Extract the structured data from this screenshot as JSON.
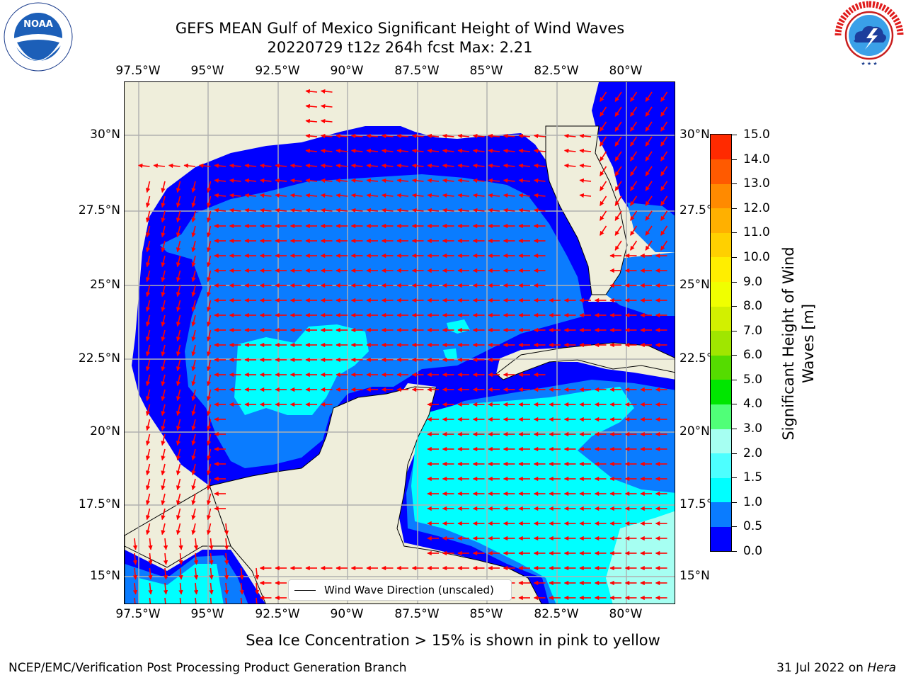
{
  "title": {
    "line1": "GEFS MEAN Gulf of Mexico Significant Height of Wind Waves",
    "line2": "20220729 t12z 264h fcst   Max: 2.21"
  },
  "logos": {
    "noaa": {
      "text": "NOAA",
      "ring": "NATIONAL OCEANIC AND ATMOSPHERIC ADMINISTRATION · U.S. DEPARTMENT OF COMMERCE"
    },
    "nws": {
      "ring": "NATIONAL WEATHER SERVICE"
    }
  },
  "map": {
    "lon_labels": [
      "97.5°W",
      "95°W",
      "92.5°W",
      "90°W",
      "87.5°W",
      "85°W",
      "82.5°W",
      "80°W"
    ],
    "lat_labels": [
      "30°N",
      "27.5°N",
      "25°N",
      "22.5°N",
      "20°N",
      "17.5°N",
      "15°N"
    ],
    "lon_range": [
      -98.4,
      -78.6
    ],
    "lat_range": [
      14.0,
      31.8
    ],
    "land_color": "#efeedb",
    "grid_color": "#b0b0b0",
    "arrow_color": "#ff0000",
    "legend_label": "Wind Wave Direction (unscaled)"
  },
  "colorbar": {
    "title_line1": "Significant Height of Wind",
    "title_line2": "Waves [m]",
    "ticks": [
      "0.0",
      "0.5",
      "1.0",
      "1.5",
      "2.0",
      "3.0",
      "4.0",
      "5.0",
      "6.0",
      "7.0",
      "8.0",
      "9.0",
      "10.0",
      "11.0",
      "12.0",
      "13.0",
      "14.0",
      "15.0"
    ],
    "colors": [
      "#0000ff",
      "#0a7cff",
      "#00ffff",
      "#4dffff",
      "#a6fff2",
      "#50ff78",
      "#00e600",
      "#55dc00",
      "#a0e600",
      "#d2f000",
      "#f0ff00",
      "#ffee00",
      "#ffd000",
      "#ffb000",
      "#ff8a00",
      "#ff5a00",
      "#ff2a00"
    ]
  },
  "footer": {
    "note": "Sea Ice Concentration > 15% is shown in pink to yellow",
    "credit_left": "NCEP/EMC/Verification Post Processing Product Generation Branch",
    "credit_date": "31 Jul 2022 on",
    "credit_host": "Hera"
  }
}
